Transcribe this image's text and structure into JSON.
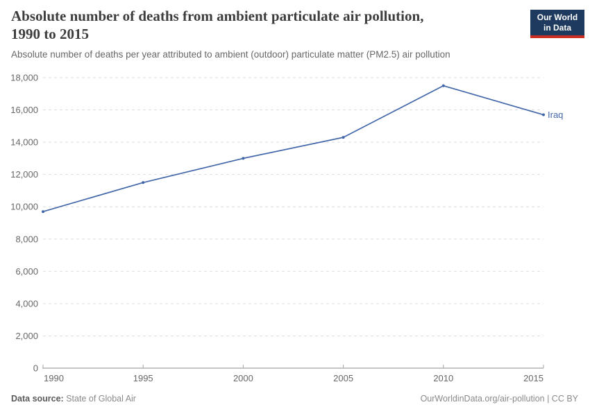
{
  "header": {
    "title_line1": "Absolute number of deaths from ambient particulate air pollution,",
    "title_line2": "1990 to 2015",
    "subtitle": "Absolute number of deaths per year attributed to ambient (outdoor) particulate matter (PM2.5) air pollution",
    "logo": {
      "line1": "Our World",
      "line2": "in Data",
      "bg_color": "#1f3a5f",
      "stripe_color": "#cb2e22"
    }
  },
  "chart_data": {
    "type": "line",
    "title": "Absolute number of deaths from ambient particulate air pollution, 1990 to 2015",
    "xlabel": "",
    "ylabel": "",
    "x": [
      1990,
      1995,
      2000,
      2005,
      2010,
      2015
    ],
    "series": [
      {
        "name": "Iraq",
        "values": [
          9700,
          11500,
          13000,
          14300,
          17500,
          15700
        ],
        "color": "#4267a9"
      }
    ],
    "xlim": [
      1990,
      2015
    ],
    "ylim": [
      0,
      18000
    ],
    "yticks": [
      0,
      2000,
      4000,
      6000,
      8000,
      10000,
      12000,
      14000,
      16000,
      18000
    ],
    "xticks": [
      1990,
      1995,
      2000,
      2005,
      2010,
      2015
    ],
    "grid": "horizontal-dashed",
    "legend_position": "line-end-label",
    "colors": {
      "grid": "#dddddd",
      "axis": "#8b8b8b",
      "tick": "#a5a5a5",
      "tick_label": "#666666"
    }
  },
  "footer": {
    "data_source_label": "Data source:",
    "data_source_value": "State of Global Air",
    "credit": "OurWorldinData.org/air-pollution | CC BY"
  }
}
